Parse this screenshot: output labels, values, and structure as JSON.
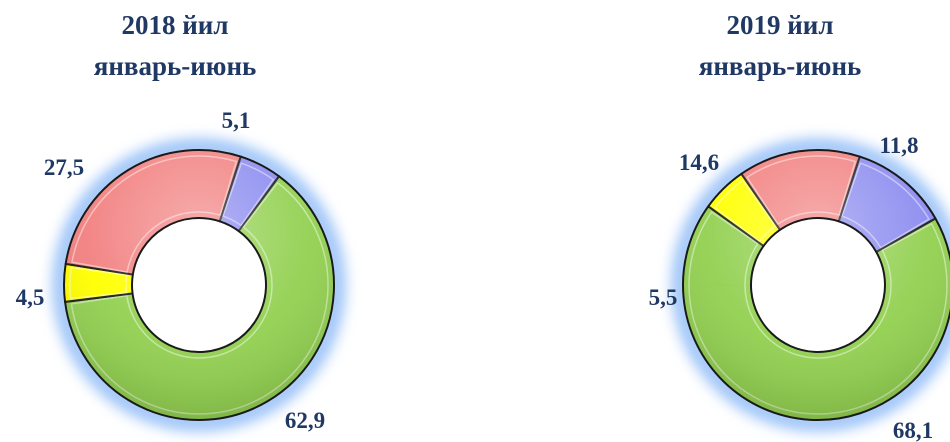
{
  "chart_data": [
    {
      "type": "donut",
      "title": [
        "2018 йил",
        "январь-июнь"
      ],
      "categories": [
        "",
        "",
        "",
        ""
      ],
      "values": [
        5.1,
        62.9,
        4.5,
        27.5
      ],
      "value_labels": [
        "5,1",
        "62,9",
        "4,5",
        "27,5"
      ],
      "colors": [
        "#8b8bf0",
        "#92d050",
        "#ffff00",
        "#f28080"
      ]
    },
    {
      "type": "donut",
      "title": [
        "2019 йил",
        "январь-июнь"
      ],
      "categories": [
        "",
        "",
        "",
        ""
      ],
      "values": [
        11.8,
        68.1,
        5.5,
        14.6
      ],
      "value_labels": [
        "11,8",
        "68,1",
        "5,5",
        "14,6"
      ],
      "colors": [
        "#8b8bf0",
        "#92d050",
        "#ffff00",
        "#f28080"
      ]
    }
  ]
}
